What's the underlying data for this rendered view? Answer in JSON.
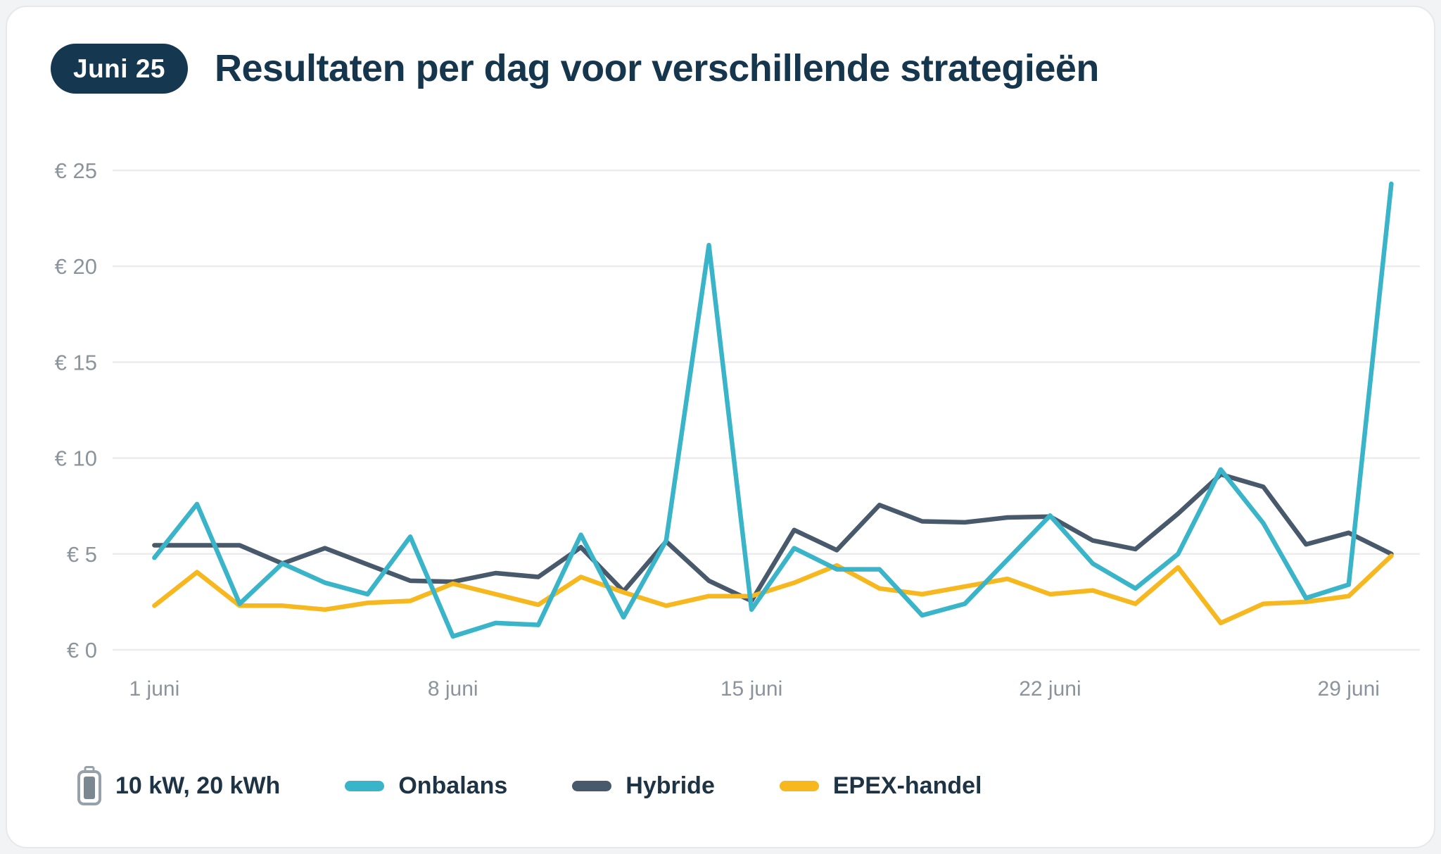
{
  "page": {
    "badge": "Juni 25",
    "title": "Resultaten per dag voor verschillende strategieën"
  },
  "legend": {
    "battery_label": "10 kW, 20 kWh",
    "battery_icon": "battery-icon",
    "items": [
      {
        "label": "Onbalans",
        "color": "#3ab4c8"
      },
      {
        "label": "Hybride",
        "color": "#47596b"
      },
      {
        "label": "EPEX-handel",
        "color": "#f6b81e"
      }
    ]
  },
  "chart_data": {
    "type": "line",
    "title": "Resultaten per dag voor verschillende strategieën",
    "xlabel": "",
    "ylabel": "",
    "x": [
      1,
      2,
      3,
      4,
      5,
      6,
      7,
      8,
      9,
      10,
      11,
      12,
      13,
      14,
      15,
      16,
      17,
      18,
      19,
      20,
      21,
      22,
      23,
      24,
      25,
      26,
      27,
      28,
      29,
      30
    ],
    "x_tick_labels": [
      {
        "day": 1,
        "label": "1 juni"
      },
      {
        "day": 8,
        "label": "8 juni"
      },
      {
        "day": 15,
        "label": "15 juni"
      },
      {
        "day": 22,
        "label": "22 juni"
      },
      {
        "day": 29,
        "label": "29 juni"
      }
    ],
    "y_ticks": [
      0,
      5,
      10,
      15,
      20,
      25
    ],
    "y_tick_prefix": "€ ",
    "ylim": [
      0,
      25
    ],
    "grid": "horizontal",
    "legend_position": "bottom",
    "series": [
      {
        "name": "Onbalans",
        "color": "#3ab4c8",
        "values": [
          4.8,
          7.6,
          2.4,
          4.5,
          3.5,
          2.9,
          5.9,
          0.7,
          1.4,
          1.3,
          6.0,
          1.7,
          5.7,
          21.1,
          2.1,
          5.3,
          4.2,
          4.2,
          1.8,
          2.4,
          4.7,
          7.0,
          4.5,
          3.2,
          5.0,
          9.4,
          6.6,
          2.7,
          3.4,
          24.3
        ]
      },
      {
        "name": "Hybride",
        "color": "#47596b",
        "values": [
          5.45,
          5.45,
          5.45,
          4.5,
          5.3,
          4.45,
          3.6,
          3.55,
          4.0,
          3.8,
          5.35,
          3.05,
          5.65,
          3.6,
          2.55,
          6.25,
          5.2,
          7.55,
          6.7,
          6.65,
          6.9,
          6.95,
          5.7,
          5.25,
          7.1,
          9.15,
          8.5,
          5.5,
          6.1,
          5.0
        ]
      },
      {
        "name": "EPEX-handel",
        "color": "#f6b81e",
        "values": [
          2.3,
          4.05,
          2.3,
          2.3,
          2.1,
          2.45,
          2.55,
          3.45,
          2.9,
          2.35,
          3.8,
          3.0,
          2.3,
          2.8,
          2.8,
          3.5,
          4.4,
          3.2,
          2.9,
          3.3,
          3.7,
          2.9,
          3.1,
          2.4,
          4.3,
          1.4,
          2.4,
          2.5,
          2.8,
          4.9
        ]
      }
    ]
  },
  "colors": {
    "title": "#16364e",
    "badge_bg": "#153750",
    "badge_text": "#ffffff",
    "grid": "#ececee",
    "axis_text": "#8b949d",
    "card_bg": "#ffffff"
  }
}
